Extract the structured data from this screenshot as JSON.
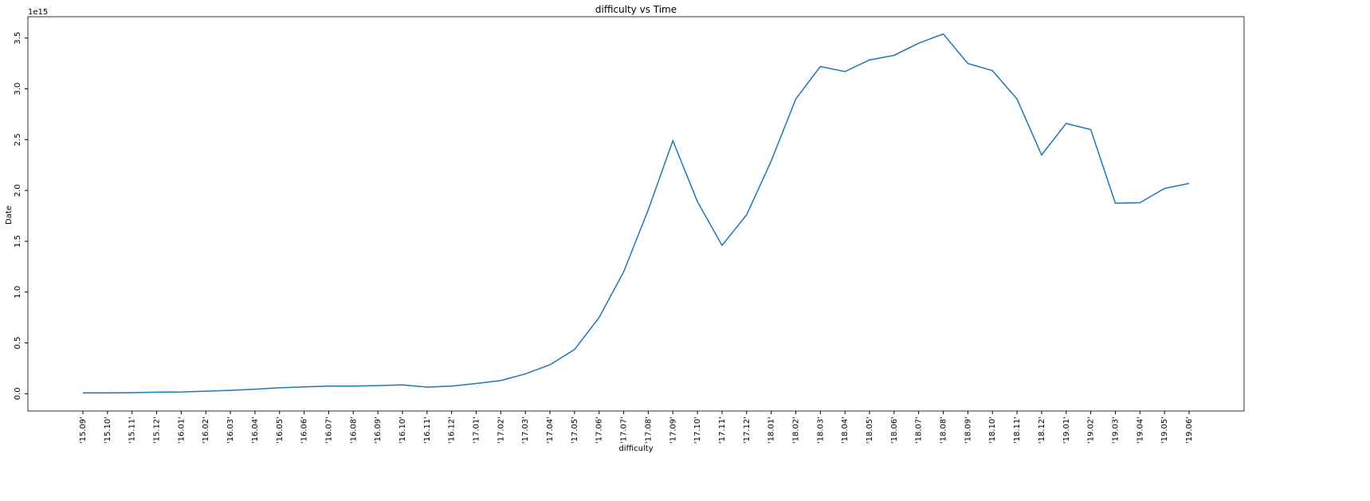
{
  "chart_data": {
    "type": "line",
    "title": "difficulty vs Time",
    "x_label": "difficulty",
    "y_label": "Date",
    "y_offset_label": "1e15",
    "categories": [
      "'15.09'",
      "'15.10'",
      "'15.11'",
      "'15.12'",
      "'16.01'",
      "'16.02'",
      "'16.03'",
      "'16.04'",
      "'16.05'",
      "'16.06'",
      "'16.07'",
      "'16.08'",
      "'16.09'",
      "'16.10'",
      "'16.11'",
      "'16.12'",
      "'17.01'",
      "'17.02'",
      "'17.03'",
      "'17.04'",
      "'17.05'",
      "'17.06'",
      "'17.07'",
      "'17.08'",
      "'17.09'",
      "'17.10'",
      "'17.11'",
      "'17.12'",
      "'18.01'",
      "'18.02'",
      "'18.03'",
      "'18.04'",
      "'18.05'",
      "'18.06'",
      "'18.07'",
      "'18.08'",
      "'18.09'",
      "'18.10'",
      "'18.11'",
      "'18.12'",
      "'19.01'",
      "'19.02'",
      "'19.03'",
      "'19.04'",
      "'19.05'",
      "'19.06'"
    ],
    "values": [
      0.008,
      0.008,
      0.01,
      0.015,
      0.017,
      0.025,
      0.033,
      0.045,
      0.058,
      0.067,
      0.075,
      0.075,
      0.08,
      0.087,
      0.065,
      0.075,
      0.1,
      0.13,
      0.195,
      0.285,
      0.435,
      0.75,
      1.2,
      1.81,
      2.49,
      1.89,
      1.46,
      1.76,
      2.29,
      2.9,
      3.22,
      3.17,
      3.285,
      3.33,
      3.45,
      3.54,
      3.25,
      3.18,
      2.9,
      2.35,
      2.66,
      2.6,
      1.875,
      1.88,
      2.02,
      2.07
    ],
    "color": "#1f77b4",
    "ylim": [
      -0.17,
      3.71
    ],
    "yticks": [
      {
        "value": 0,
        "label": "0.0"
      },
      0.5,
      {
        "value": 1,
        "label": "1.0"
      },
      1.5,
      {
        "value": 2,
        "label": "2.0"
      },
      2.5,
      {
        "value": 3,
        "label": "3.0"
      },
      3.5
    ],
    "grid": false
  }
}
